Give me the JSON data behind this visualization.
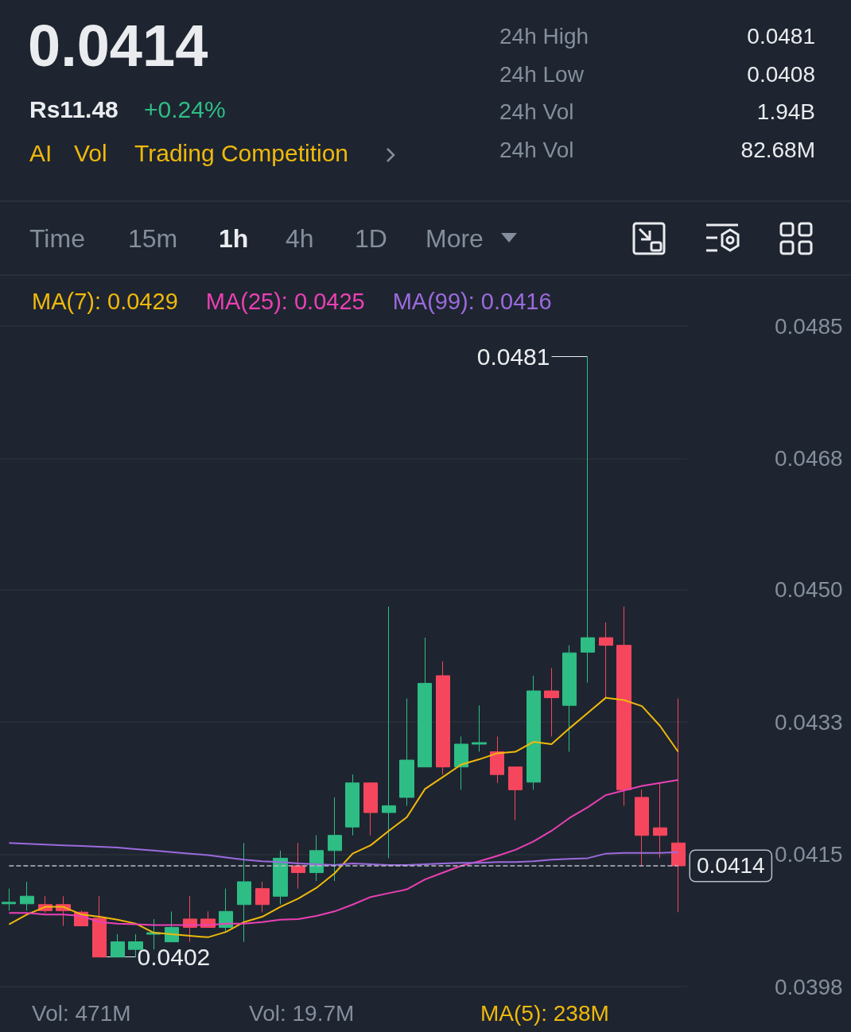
{
  "chart_data": {
    "type": "candlestick",
    "title": "0.0414",
    "annotations": [
      "Rs11.48",
      "+0.24%",
      "AI",
      "Vol",
      "Trading Competition",
      "24h High",
      "0.0481",
      "24h Low",
      "0.0408",
      "24h Vol",
      "1.94B",
      "24h Vol",
      "82.68M",
      "Time",
      "15m",
      "1h",
      "4h",
      "1D",
      "More",
      "0.0481",
      "0.0402",
      "Vol: 471M",
      "Vol: 19.7M",
      "MA(5): 238M"
    ],
    "categories": [
      null,
      null,
      null,
      null,
      null,
      null,
      null,
      null,
      null,
      null,
      null,
      null,
      null,
      null,
      null,
      null,
      null,
      null,
      null,
      null,
      null,
      null,
      null,
      null,
      null,
      null,
      null,
      null,
      null,
      null,
      null,
      null,
      null,
      null,
      null,
      null,
      null,
      null
    ],
    "series": [
      {
        "ohlc": [
          [
            0.0409,
            0.0411,
            0.04081,
            0.04092
          ],
          [
            0.0409,
            0.04119,
            0.04081,
            0.041
          ],
          [
            0.04089,
            0.041,
            0.04078,
            0.04081
          ],
          [
            0.04089,
            0.041,
            0.04061,
            0.04081
          ],
          [
            0.04079,
            0.04081,
            0.04061,
            0.04061
          ],
          [
            0.04071,
            0.041,
            0.0402,
            0.0402
          ],
          [
            0.0402,
            0.0405,
            0.0402,
            0.0404
          ],
          [
            0.0403,
            0.0405,
            0.0402,
            0.0404
          ],
          [
            0.0405,
            0.0407,
            0.0403,
            0.04052
          ],
          [
            0.0404,
            0.0408,
            0.0404,
            0.04059
          ],
          [
            0.0407,
            0.041,
            0.0404,
            0.04059
          ],
          [
            0.0407,
            0.0408,
            0.04059,
            0.04059
          ],
          [
            0.04059,
            0.0411,
            0.04053,
            0.0408
          ],
          [
            0.04089,
            0.0417,
            0.0404,
            0.04119
          ],
          [
            0.0411,
            0.04119,
            0.04079,
            0.04089
          ],
          [
            0.041,
            0.0416,
            0.04089,
            0.0415
          ],
          [
            0.0414,
            0.0417,
            0.0411,
            0.04131
          ],
          [
            0.04131,
            0.0418,
            0.0412,
            0.0416
          ],
          [
            0.0416,
            0.0423,
            0.0412,
            0.0418
          ],
          [
            0.04191,
            0.0426,
            0.0418,
            0.04249
          ],
          [
            0.04249,
            0.04249,
            0.0418,
            0.0421
          ],
          [
            0.0421,
            0.04481,
            0.0415,
            0.04219
          ],
          [
            0.0423,
            0.0436,
            0.04219,
            0.04279
          ],
          [
            0.0427,
            0.0444,
            0.0427,
            0.0438
          ],
          [
            0.0439,
            0.04409,
            0.0426,
            0.0427
          ],
          [
            0.0427,
            0.0431,
            0.0424,
            0.043
          ],
          [
            0.043,
            0.04351,
            0.0429,
            0.04302
          ],
          [
            0.0429,
            0.0431,
            0.04249,
            0.0426
          ],
          [
            0.0427,
            0.0427,
            0.042,
            0.0424
          ],
          [
            0.0425,
            0.0439,
            0.0424,
            0.0437
          ],
          [
            0.0437,
            0.044,
            0.0431,
            0.04361
          ],
          [
            0.04351,
            0.0443,
            0.0429,
            0.0442
          ],
          [
            0.04421,
            0.0481,
            0.04381,
            0.0444
          ],
          [
            0.0444,
            0.0446,
            0.0436,
            0.0443
          ],
          [
            0.0443,
            0.04481,
            0.04219,
            0.0424
          ],
          [
            0.0423,
            0.0424,
            0.0414,
            0.0418
          ],
          [
            0.0419,
            0.04249,
            0.0415,
            0.0418
          ],
          [
            0.0417,
            0.0436,
            0.04079,
            0.0414
          ]
        ],
        "colors": [
          "#2ebd85",
          "#2ebd85",
          "#f6465d",
          "#f6465d",
          "#f6465d",
          "#f6465d",
          "#2ebd85",
          "#2ebd85",
          "#2ebd85",
          "#2ebd85",
          "#f6465d",
          "#f6465d",
          "#2ebd85",
          "#2ebd85",
          "#f6465d",
          "#2ebd85",
          "#f6465d",
          "#2ebd85",
          "#2ebd85",
          "#2ebd85",
          "#f6465d",
          "#2ebd85",
          "#2ebd85",
          "#2ebd85",
          "#f6465d",
          "#2ebd85",
          "#2ebd85",
          "#f6465d",
          "#f6465d",
          "#2ebd85",
          "#f6465d",
          "#2ebd85",
          "#2ebd85",
          "#f6465d",
          "#f6465d",
          "#f6465d",
          "#f6465d",
          "#f6465d"
        ]
      },
      {
        "type": "line",
        "name": "MA(7): 0.0429",
        "color": "#f0b90b",
        "values": [
          0.04063,
          0.04076,
          0.04086,
          0.04086,
          0.04076,
          0.04073,
          0.04069,
          0.04064,
          0.04052,
          0.0405,
          0.04048,
          0.04046,
          0.04053,
          0.04066,
          0.04073,
          0.04086,
          0.04097,
          0.04111,
          0.0413,
          0.04156,
          0.04167,
          0.04186,
          0.04204,
          0.04241,
          0.04257,
          0.04273,
          0.0428,
          0.04288,
          0.0429,
          0.04303,
          0.043,
          0.04321,
          0.04341,
          0.04361,
          0.04358,
          0.0435,
          0.04324,
          0.0429
        ]
      },
      {
        "type": "line",
        "name": "MA(25): 0.0425",
        "color": "#eb40b5",
        "values": [
          0.04078,
          0.04078,
          0.04076,
          0.04076,
          0.04074,
          0.04066,
          0.04064,
          0.04063,
          0.04062,
          0.04062,
          0.04062,
          0.04062,
          0.04064,
          0.04064,
          0.04066,
          0.04069,
          0.0407,
          0.04074,
          0.0408,
          0.04089,
          0.04099,
          0.04104,
          0.04109,
          0.04122,
          0.04131,
          0.0414,
          0.04146,
          0.04153,
          0.04161,
          0.04172,
          0.04186,
          0.04203,
          0.04217,
          0.04233,
          0.04239,
          0.04245,
          0.04249,
          0.04253
        ]
      },
      {
        "type": "line",
        "name": "MA(99): 0.0416",
        "color": "#9c6ade",
        "values": [
          0.0417,
          0.04169,
          0.04168,
          0.04167,
          0.04166,
          0.04165,
          0.04164,
          0.04162,
          0.0416,
          0.04158,
          0.04156,
          0.04154,
          0.04151,
          0.04148,
          0.04146,
          0.04145,
          0.04143,
          0.04142,
          0.04141,
          0.04143,
          0.04142,
          0.04141,
          0.04141,
          0.04142,
          0.04143,
          0.04144,
          0.04144,
          0.04145,
          0.04145,
          0.04146,
          0.04148,
          0.04149,
          0.0415,
          0.04156,
          0.04157,
          0.04157,
          0.04157,
          0.04158
        ]
      }
    ],
    "ylim": [
      0.03981,
      0.0485
    ],
    "yticks": [
      0.0485,
      {
        "value": 0.04676,
        "label": "0.0468"
      },
      {
        "value": 0.04503,
        "label": "0.0450"
      },
      {
        "value": 0.04329,
        "label": "0.0433"
      },
      {
        "value": 0.04155,
        "label": "0.0415"
      },
      {
        "value": 0.03981,
        "label": "0.0398"
      }
    ],
    "ref_lines": [
      {
        "axis": "y",
        "value": 0.0414,
        "label": "0.0414",
        "color": "#b7bdc6",
        "line_style": "dashed"
      }
    ],
    "grid": "y",
    "legend": "top",
    "marker": "none",
    "tick_labels": "y"
  }
}
